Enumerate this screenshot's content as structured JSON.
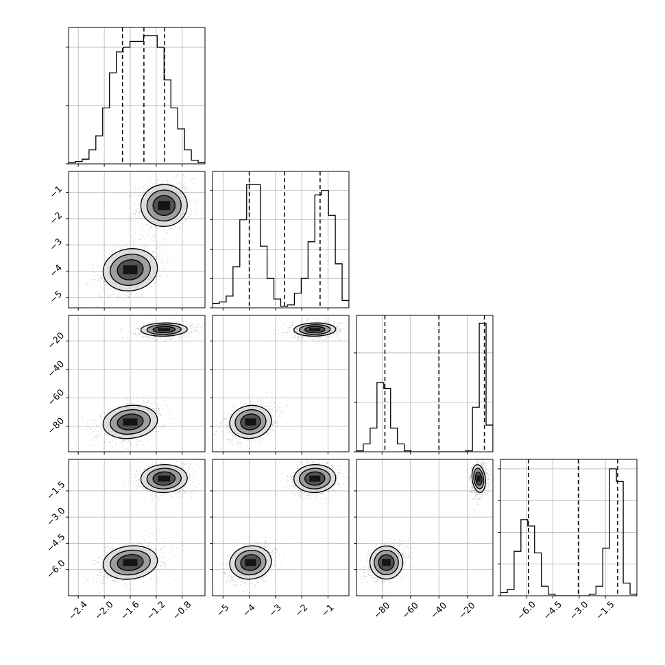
{
  "chart_data": {
    "type": "corner",
    "grid": true,
    "colors": {
      "line": "#000000",
      "grid": "#b0b0b0",
      "density": "#000000"
    },
    "parameters": [
      {
        "range": [
          -2.55,
          -0.45
        ],
        "ticks": [
          -2.4,
          -2.0,
          -1.6,
          -1.2,
          -0.8
        ],
        "tick_labels": [
          "−2.4",
          "−2.0",
          "−1.6",
          "−1.2",
          "−0.8"
        ],
        "quantiles": [
          -1.72,
          -1.39,
          -1.07
        ],
        "histogram": [
          0.01,
          0.02,
          0.04,
          0.12,
          0.24,
          0.48,
          0.78,
          0.96,
          1.0,
          1.05,
          1.05,
          1.1,
          1.1,
          1.0,
          0.72,
          0.48,
          0.3,
          0.12,
          0.03,
          0.01
        ],
        "hist_ylim": [
          0,
          1.17
        ],
        "hist_grid": [
          0.5,
          1.0
        ]
      },
      {
        "range": [
          -5.4,
          -0.2
        ],
        "ticks": [
          -5,
          -4,
          -3,
          -2,
          -1
        ],
        "tick_labels": [
          "−5",
          "−4",
          "−3",
          "−2",
          "−1"
        ],
        "quantiles": [
          -4.0,
          -2.65,
          -1.3
        ],
        "histogram": [
          0.03,
          0.04,
          0.08,
          0.28,
          0.6,
          0.84,
          0.84,
          0.42,
          0.2,
          0.06,
          0.01,
          0.02,
          0.1,
          0.2,
          0.45,
          0.77,
          0.8,
          0.63,
          0.3,
          0.05
        ],
        "hist_ylim": [
          0,
          0.93
        ],
        "hist_grid": [
          0.2,
          0.4,
          0.6,
          0.8
        ]
      },
      {
        "range": [
          -98,
          -2
        ],
        "ticks": [
          -80,
          -60,
          -40,
          -20
        ],
        "tick_labels": [
          "−80",
          "−60",
          "−40",
          "−20"
        ],
        "quantiles": [
          -78,
          -40,
          -8
        ],
        "histogram": [
          0.01,
          0.08,
          0.24,
          0.7,
          0.64,
          0.24,
          0.08,
          0.01,
          0,
          0,
          0,
          0,
          0,
          0,
          0,
          0,
          0.01,
          0.45,
          1.3,
          0.27
        ],
        "hist_ylim": [
          0,
          1.38
        ],
        "hist_grid": [
          0.5,
          1.0
        ]
      },
      {
        "range": [
          -7.5,
          0.3
        ],
        "ticks": [
          -6.0,
          -4.5,
          -3.0,
          -1.5
        ],
        "tick_labels": [
          "−6.0",
          "−4.5",
          "−3.0",
          "−1.5"
        ],
        "quantiles": [
          -5.9,
          -3.05,
          -0.8
        ],
        "histogram": [
          0.02,
          0.04,
          0.28,
          0.48,
          0.44,
          0.27,
          0.06,
          0.01,
          0,
          0,
          0,
          0,
          0,
          0.01,
          0.06,
          0.3,
          0.8,
          0.72,
          0.08,
          0.01
        ],
        "hist_ylim": [
          0,
          0.86
        ],
        "hist_grid": [
          0.2,
          0.4,
          0.6,
          0.8
        ]
      }
    ],
    "modes": [
      {
        "center": [
          -1.08,
          -1.5,
          -12,
          -0.8
        ],
        "sigma": [
          0.17,
          0.38,
          2.2,
          0.38
        ],
        "weight": 0.5,
        "corr": 0.1
      },
      {
        "center": [
          -1.6,
          -3.95,
          -77,
          -5.6
        ],
        "sigma": [
          0.2,
          0.38,
          5.5,
          0.45
        ],
        "weight": 0.5,
        "corr": 0.35
      }
    ],
    "contour_levels": [
      0.118,
      0.393,
      0.675
    ]
  }
}
